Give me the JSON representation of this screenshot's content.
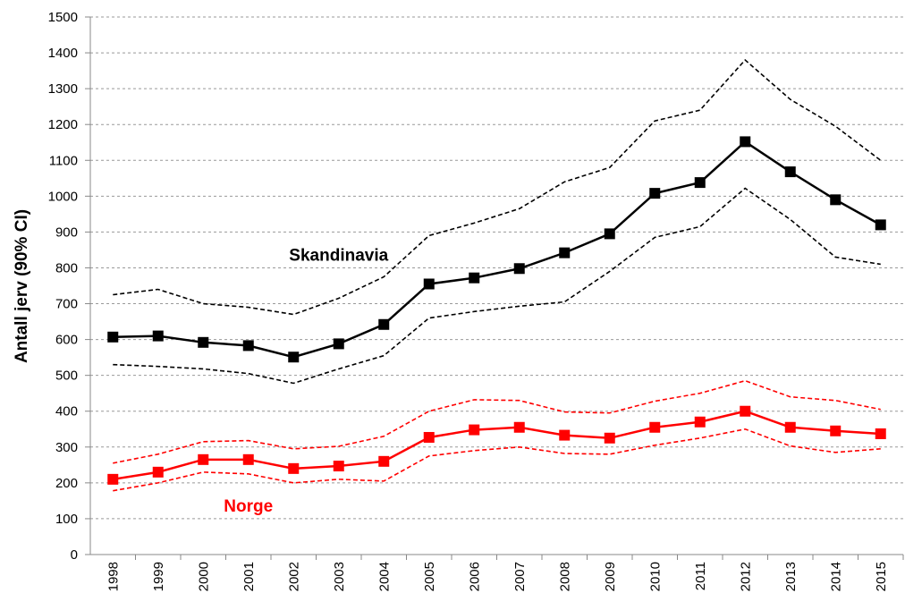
{
  "chart_data": {
    "type": "line",
    "y_label": "Antall jerv (90% CI)",
    "categories": [
      "1998",
      "1999",
      "2000",
      "2001",
      "2002",
      "2003",
      "2004",
      "2005",
      "2006",
      "2007",
      "2008",
      "2009",
      "2010",
      "2011",
      "2012",
      "2013",
      "2014",
      "2015"
    ],
    "series": [
      {
        "color": "#000000",
        "dashed": true,
        "values": [
          725,
          740,
          700,
          690,
          670,
          715,
          775,
          890,
          925,
          965,
          1040,
          1080,
          1210,
          1240,
          1380,
          1270,
          1195,
          1100
        ]
      },
      {
        "color": "#000000",
        "dashed": false,
        "markers": true,
        "values": [
          607,
          610,
          592,
          583,
          551,
          588,
          642,
          755,
          772,
          798,
          842,
          895,
          1008,
          1038,
          1152,
          1068,
          990,
          920
        ]
      },
      {
        "color": "#000000",
        "dashed": true,
        "values": [
          530,
          525,
          518,
          505,
          478,
          518,
          555,
          660,
          678,
          693,
          705,
          790,
          885,
          915,
          1022,
          935,
          830,
          810
        ]
      },
      {
        "color": "#ff0000",
        "dashed": true,
        "values": [
          255,
          280,
          315,
          318,
          295,
          302,
          330,
          400,
          432,
          430,
          398,
          395,
          428,
          450,
          485,
          440,
          430,
          405
        ]
      },
      {
        "color": "#ff0000",
        "dashed": false,
        "markers": true,
        "values": [
          210,
          230,
          265,
          265,
          240,
          247,
          260,
          327,
          348,
          355,
          333,
          325,
          355,
          370,
          400,
          355,
          345,
          337
        ]
      },
      {
        "color": "#ff0000",
        "dashed": true,
        "values": [
          178,
          200,
          230,
          225,
          200,
          210,
          205,
          275,
          290,
          300,
          282,
          280,
          305,
          325,
          350,
          303,
          285,
          295
        ]
      }
    ],
    "annotations": [
      {
        "text": "Skandinavia",
        "color": "#000000",
        "category": "2003",
        "value": 835
      },
      {
        "text": "Norge",
        "color": "#ff0000",
        "category": "2001",
        "value": 135
      }
    ],
    "ylim": [
      0,
      1500
    ],
    "yticks": [
      0,
      100,
      200,
      300,
      400,
      500,
      600,
      700,
      800,
      900,
      1000,
      1100,
      1200,
      1300,
      1400,
      1500
    ],
    "grid": true
  }
}
